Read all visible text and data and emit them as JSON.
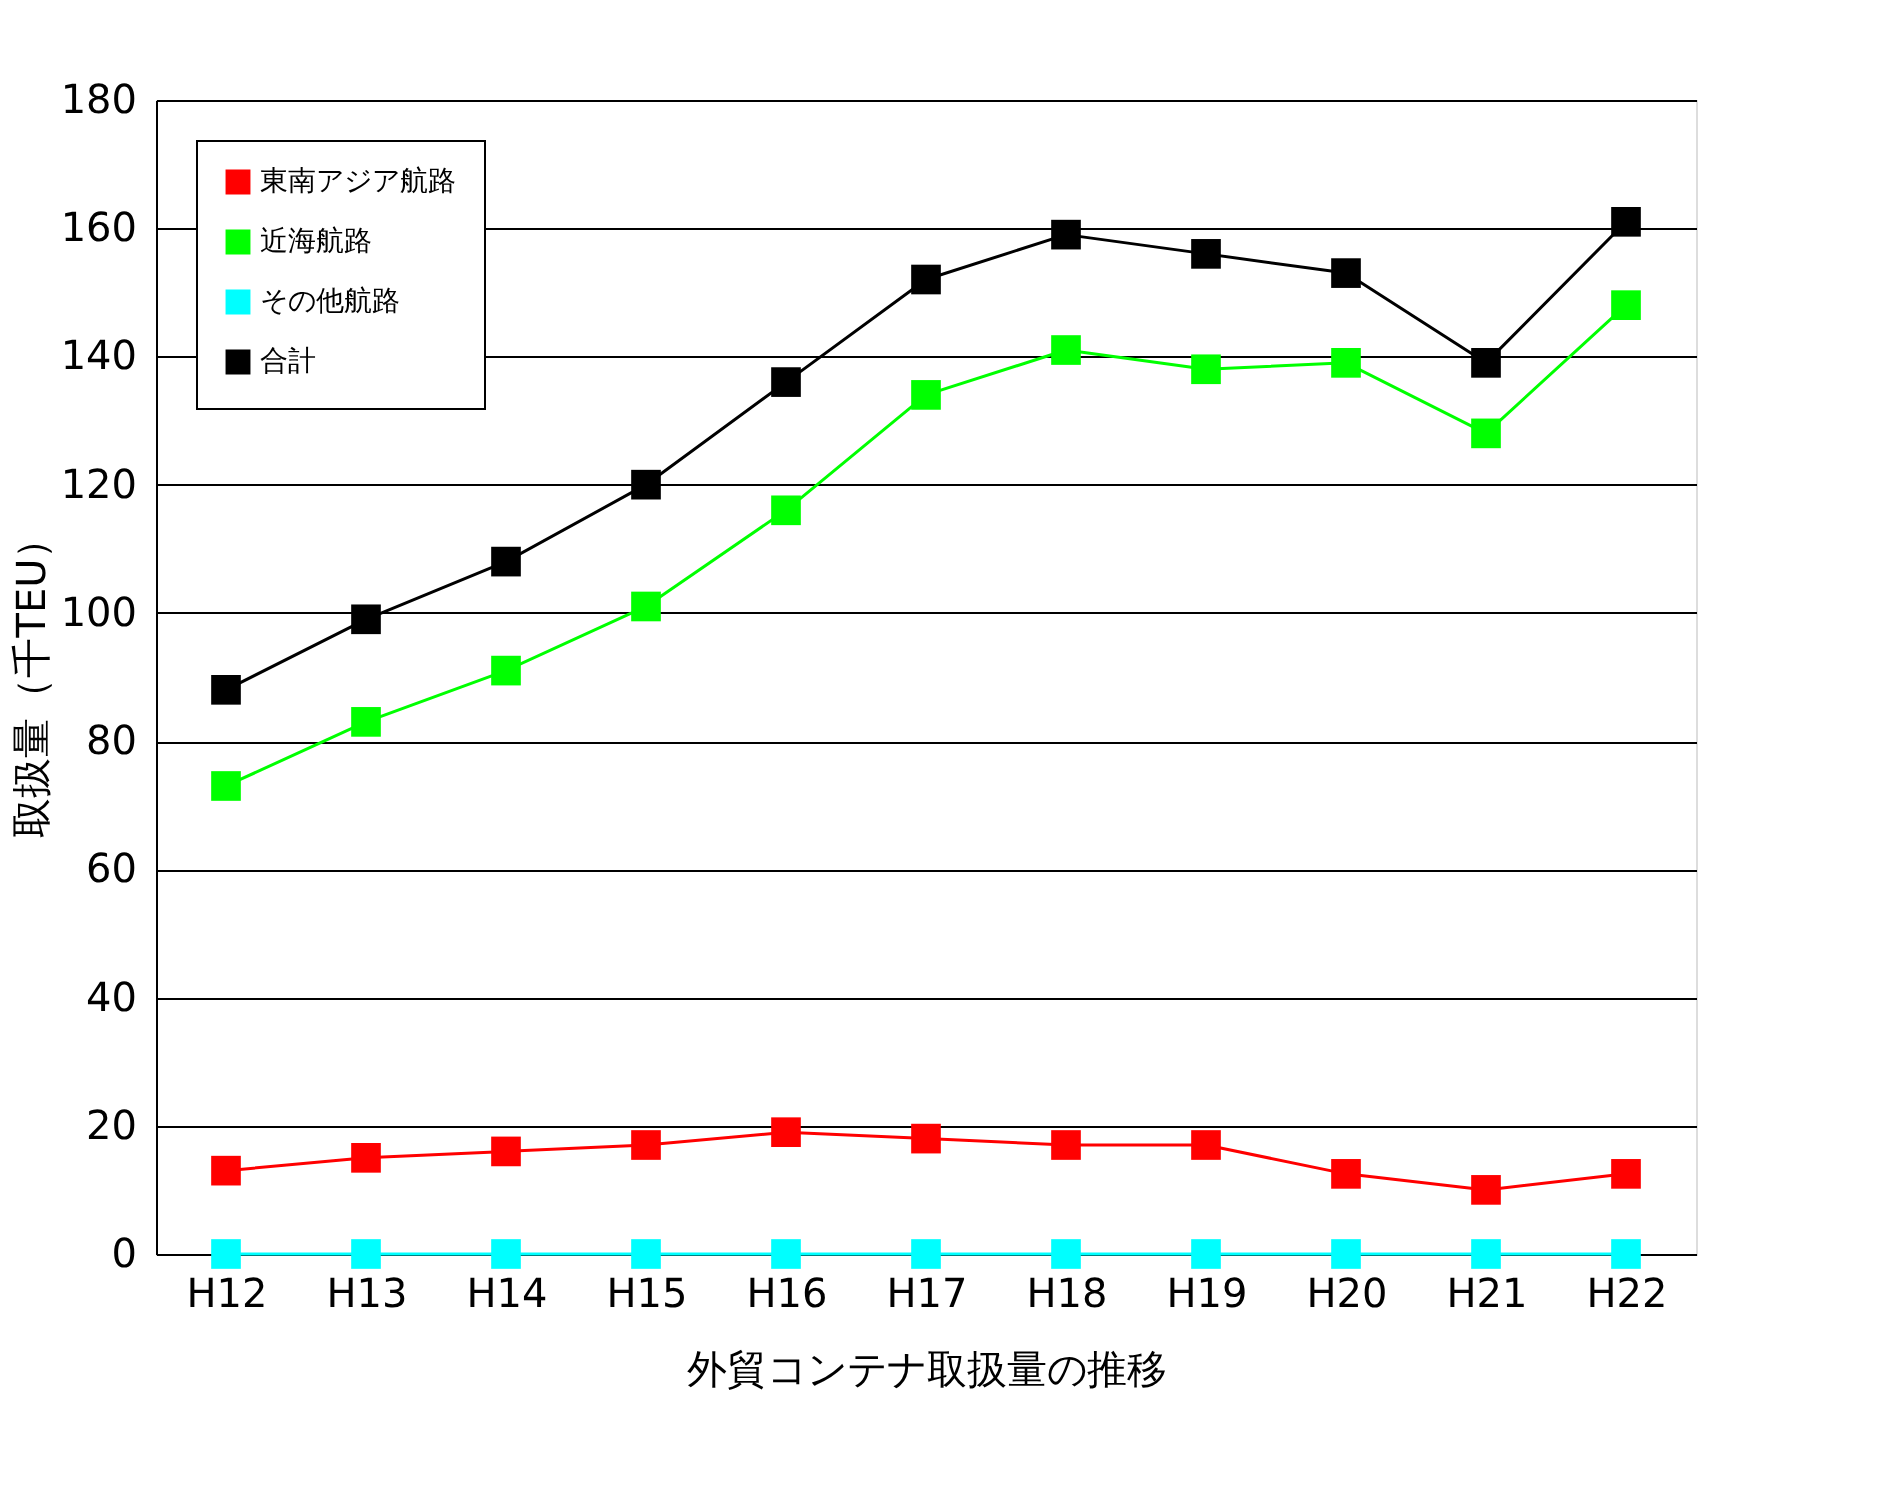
{
  "chart_data": {
    "type": "line",
    "xlabel": "外貿コンテナ取扱量の推移",
    "ylabel": "取扱量（千TEU）",
    "categories": [
      "H12",
      "H13",
      "H14",
      "H15",
      "H16",
      "H17",
      "H18",
      "H19",
      "H20",
      "H21",
      "H22"
    ],
    "series": [
      {
        "name": "東南アジア航路",
        "color": "#ff0000",
        "values": [
          13,
          15,
          16,
          17,
          19,
          18,
          17,
          17,
          12.5,
          10,
          12.5
        ]
      },
      {
        "name": "近海航路",
        "color": "#00ff00",
        "values": [
          73,
          83,
          91,
          101,
          116,
          134,
          141,
          138,
          139,
          128,
          148
        ]
      },
      {
        "name": "その他航路",
        "color": "#00ffff",
        "values": [
          0,
          0,
          0,
          0,
          0,
          0,
          0,
          0,
          0,
          0,
          0
        ]
      },
      {
        "name": "合計",
        "color": "#000000",
        "values": [
          88,
          99,
          108,
          120,
          136,
          152,
          159,
          156,
          153,
          139,
          161
        ]
      }
    ],
    "ylim": [
      0,
      180
    ],
    "yticks": [
      0,
      20,
      40,
      60,
      80,
      100,
      120,
      140,
      160,
      180
    ],
    "grid": "y",
    "legend": "top left",
    "marker": "square",
    "line_style": "solid"
  }
}
